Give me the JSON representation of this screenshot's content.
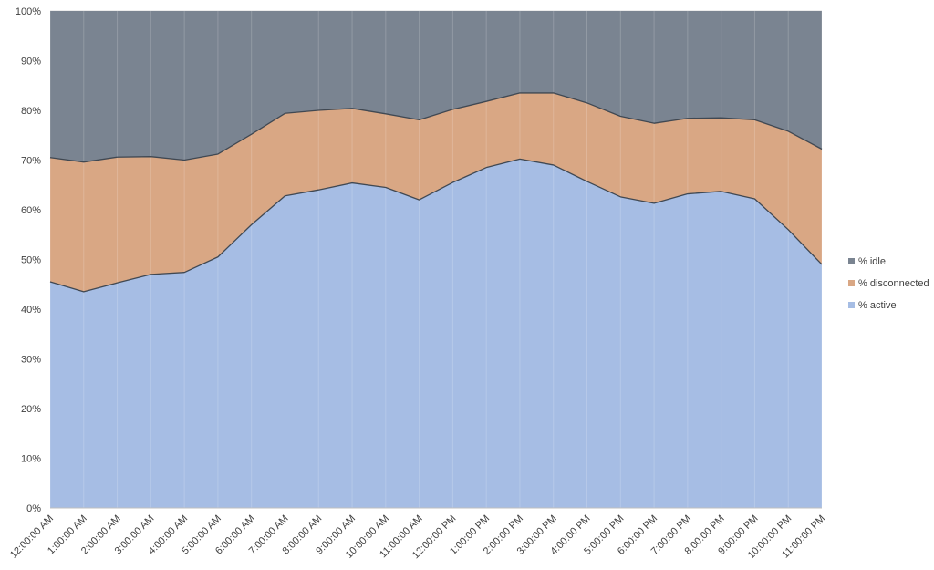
{
  "chart_data": {
    "type": "area",
    "stacked": true,
    "percent_stacked": true,
    "categories": [
      "12:00:00 AM",
      "1:00:00 AM",
      "2:00:00 AM",
      "3:00:00 AM",
      "4:00:00 AM",
      "5:00:00 AM",
      "6:00:00 AM",
      "7:00:00 AM",
      "8:00:00 AM",
      "9:00:00 AM",
      "10:00:00 AM",
      "11:00:00 AM",
      "12:00:00 PM",
      "1:00:00 PM",
      "2:00:00 PM",
      "3:00:00 PM",
      "4:00:00 PM",
      "5:00:00 PM",
      "6:00:00 PM",
      "7:00:00 PM",
      "8:00:00 PM",
      "9:00:00 PM",
      "10:00:00 PM",
      "11:00:00 PM"
    ],
    "series": [
      {
        "name": "% active",
        "color": "#a6bde4",
        "values": [
          45.5,
          43.5,
          45.3,
          47.0,
          47.4,
          50.5,
          57.0,
          62.8,
          64.0,
          65.4,
          64.5,
          62.0,
          65.5,
          68.5,
          70.2,
          69.0,
          65.7,
          62.6,
          61.3,
          63.2,
          63.7,
          62.2,
          56.0,
          49.0
        ]
      },
      {
        "name": "% disconnected",
        "color": "#d9a784",
        "values": [
          25.0,
          26.1,
          25.3,
          23.7,
          22.6,
          20.7,
          18.2,
          16.6,
          16.0,
          15.0,
          14.8,
          16.1,
          14.7,
          13.3,
          13.3,
          14.5,
          15.8,
          16.2,
          16.1,
          15.2,
          14.8,
          15.9,
          19.8,
          23.2
        ]
      },
      {
        "name": "% idle",
        "color": "#7a8491",
        "values": [
          29.5,
          30.4,
          29.4,
          29.3,
          30.0,
          28.8,
          24.8,
          20.6,
          20.0,
          19.6,
          20.7,
          21.9,
          19.8,
          18.2,
          16.5,
          16.5,
          18.5,
          21.2,
          22.6,
          21.6,
          21.5,
          21.9,
          24.2,
          27.8
        ]
      }
    ],
    "y_ticks": [
      "0%",
      "10%",
      "20%",
      "30%",
      "40%",
      "50%",
      "60%",
      "70%",
      "80%",
      "90%",
      "100%"
    ],
    "ylim": [
      0,
      100
    ],
    "grid": true,
    "legend_position": "right",
    "legend": [
      {
        "name": "% idle",
        "color": "#7a8491"
      },
      {
        "name": "% disconnected",
        "color": "#d9a784"
      },
      {
        "name": "% active",
        "color": "#a6bde4"
      }
    ]
  }
}
